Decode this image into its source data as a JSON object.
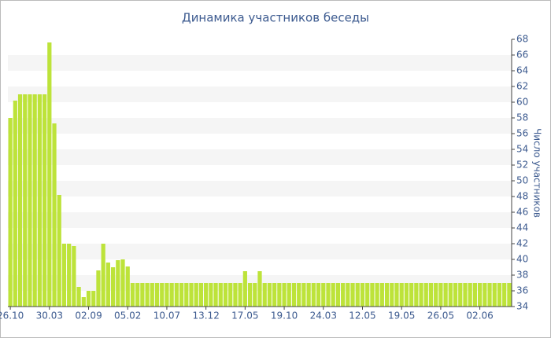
{
  "chart_data": {
    "type": "bar",
    "title": "Динамика участников беседы",
    "y_label": "Число участников",
    "categories": [
      "26.10",
      null,
      null,
      null,
      null,
      null,
      null,
      null,
      "30.03",
      null,
      null,
      null,
      null,
      null,
      null,
      null,
      "02.09",
      null,
      null,
      null,
      null,
      null,
      null,
      null,
      "05.02",
      null,
      null,
      null,
      null,
      null,
      null,
      null,
      "10.07",
      null,
      null,
      null,
      null,
      null,
      null,
      null,
      "13.12",
      null,
      null,
      null,
      null,
      null,
      null,
      null,
      "17.05",
      null,
      null,
      null,
      null,
      null,
      null,
      null,
      "19.10",
      null,
      null,
      null,
      null,
      null,
      null,
      null,
      "24.03",
      null,
      null,
      null,
      null,
      null,
      null,
      null,
      "12.05",
      null,
      null,
      null,
      null,
      null,
      null,
      null,
      "19.05",
      null,
      null,
      null,
      null,
      null,
      null,
      null,
      "26.05",
      null,
      null,
      null,
      null,
      null,
      null,
      null,
      "02.06",
      null,
      null,
      null,
      null,
      null,
      null
    ],
    "values": [
      58,
      60.2,
      61,
      61,
      61,
      61,
      61,
      61,
      67.6,
      57.3,
      48.2,
      42,
      42,
      41.7,
      36.5,
      35.2,
      36,
      36,
      38.6,
      42,
      39.6,
      39,
      39.9,
      40,
      39.1,
      37,
      37,
      37,
      37,
      37,
      37,
      37,
      37,
      37,
      37,
      37,
      37,
      37,
      37,
      37,
      37,
      37,
      37,
      37,
      37,
      37,
      37,
      37,
      38.5,
      37,
      37,
      38.5,
      37,
      37,
      37,
      37,
      37,
      37,
      37,
      37,
      37,
      37,
      37,
      37,
      37,
      37,
      37,
      37,
      37,
      37,
      37,
      37,
      37,
      37,
      37,
      37,
      37,
      37,
      37,
      37,
      37,
      37,
      37,
      37,
      37,
      37,
      37,
      37,
      37,
      37,
      37,
      37,
      37,
      37,
      37,
      37,
      37,
      37,
      37,
      37,
      37,
      37,
      37
    ],
    "color": "#bde33a",
    "ylim": [
      34,
      68
    ],
    "yticks": [
      34,
      36,
      38,
      40,
      42,
      44,
      46,
      48,
      50,
      52,
      54,
      56,
      58,
      60,
      62,
      64,
      66,
      68
    ],
    "grid": true
  }
}
